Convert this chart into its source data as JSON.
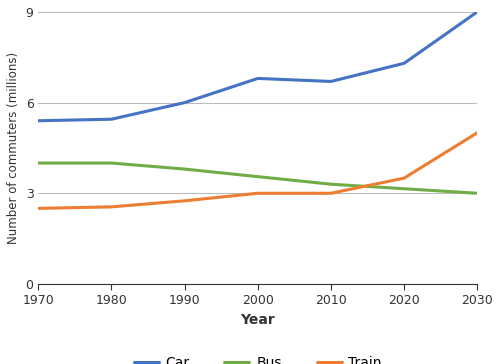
{
  "years": [
    1970,
    1980,
    1990,
    2000,
    2010,
    2020,
    2030
  ],
  "car": [
    5.4,
    5.45,
    6.0,
    6.8,
    6.7,
    7.3,
    9.0
  ],
  "bus": [
    4.0,
    4.0,
    3.8,
    3.55,
    3.3,
    3.15,
    3.0
  ],
  "train": [
    2.5,
    2.55,
    2.75,
    3.0,
    3.0,
    3.5,
    5.0
  ],
  "car_color": "#4472c4",
  "bus_color": "#70ad47",
  "train_color": "#ed7d31",
  "xlabel": "Year",
  "ylabel": "Number of commuters (millions)",
  "ylim": [
    0,
    9
  ],
  "yticks": [
    0,
    3,
    6,
    9
  ],
  "xticks": [
    1970,
    1980,
    1990,
    2000,
    2010,
    2020,
    2030
  ],
  "legend_labels": [
    "Car",
    "Bus",
    "Train"
  ],
  "line_width": 2.2,
  "grid_color": "#bbbbbb",
  "background_color": "#ffffff"
}
